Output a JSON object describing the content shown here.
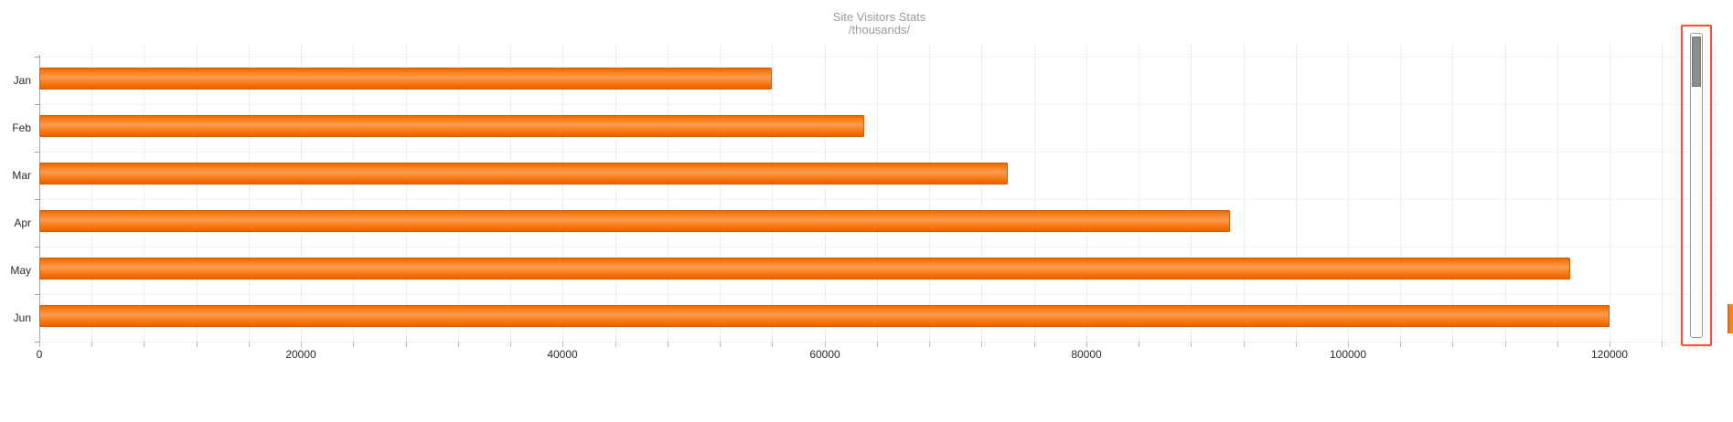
{
  "title": {
    "line1": "Site Visitors Stats",
    "line2": "/thousands/"
  },
  "chart_data": {
    "type": "bar",
    "orientation": "horizontal",
    "title": "Site Visitors Stats",
    "subtitle": "/thousands/",
    "categories": [
      "Jan",
      "Feb",
      "Mar",
      "Apr",
      "May",
      "Jun"
    ],
    "values": [
      56000,
      63000,
      74000,
      91000,
      117000,
      120000
    ],
    "xlabel": "",
    "ylabel": "",
    "xlim": [
      0,
      128000
    ],
    "x_major_ticks": [
      0,
      20000,
      40000,
      60000,
      80000,
      100000,
      120000
    ],
    "x_minor_step": 4000,
    "grid": true,
    "legend": "none",
    "bar_gradient": [
      "#ec6a02",
      "#f8831f",
      "#fd9c4e",
      "#f5760c",
      "#ea6200"
    ],
    "bar_border_color": "#dd5c00"
  },
  "scrollbar": {
    "track_border_color": "#9a9a9a",
    "thumb_fill_color": "#8c8c8c",
    "thumb_border_color": "#747474",
    "highlight_color": "#f4513a"
  },
  "edge_fragment": {
    "fill_color": "#f8871f",
    "border_color": "#d95f00"
  }
}
